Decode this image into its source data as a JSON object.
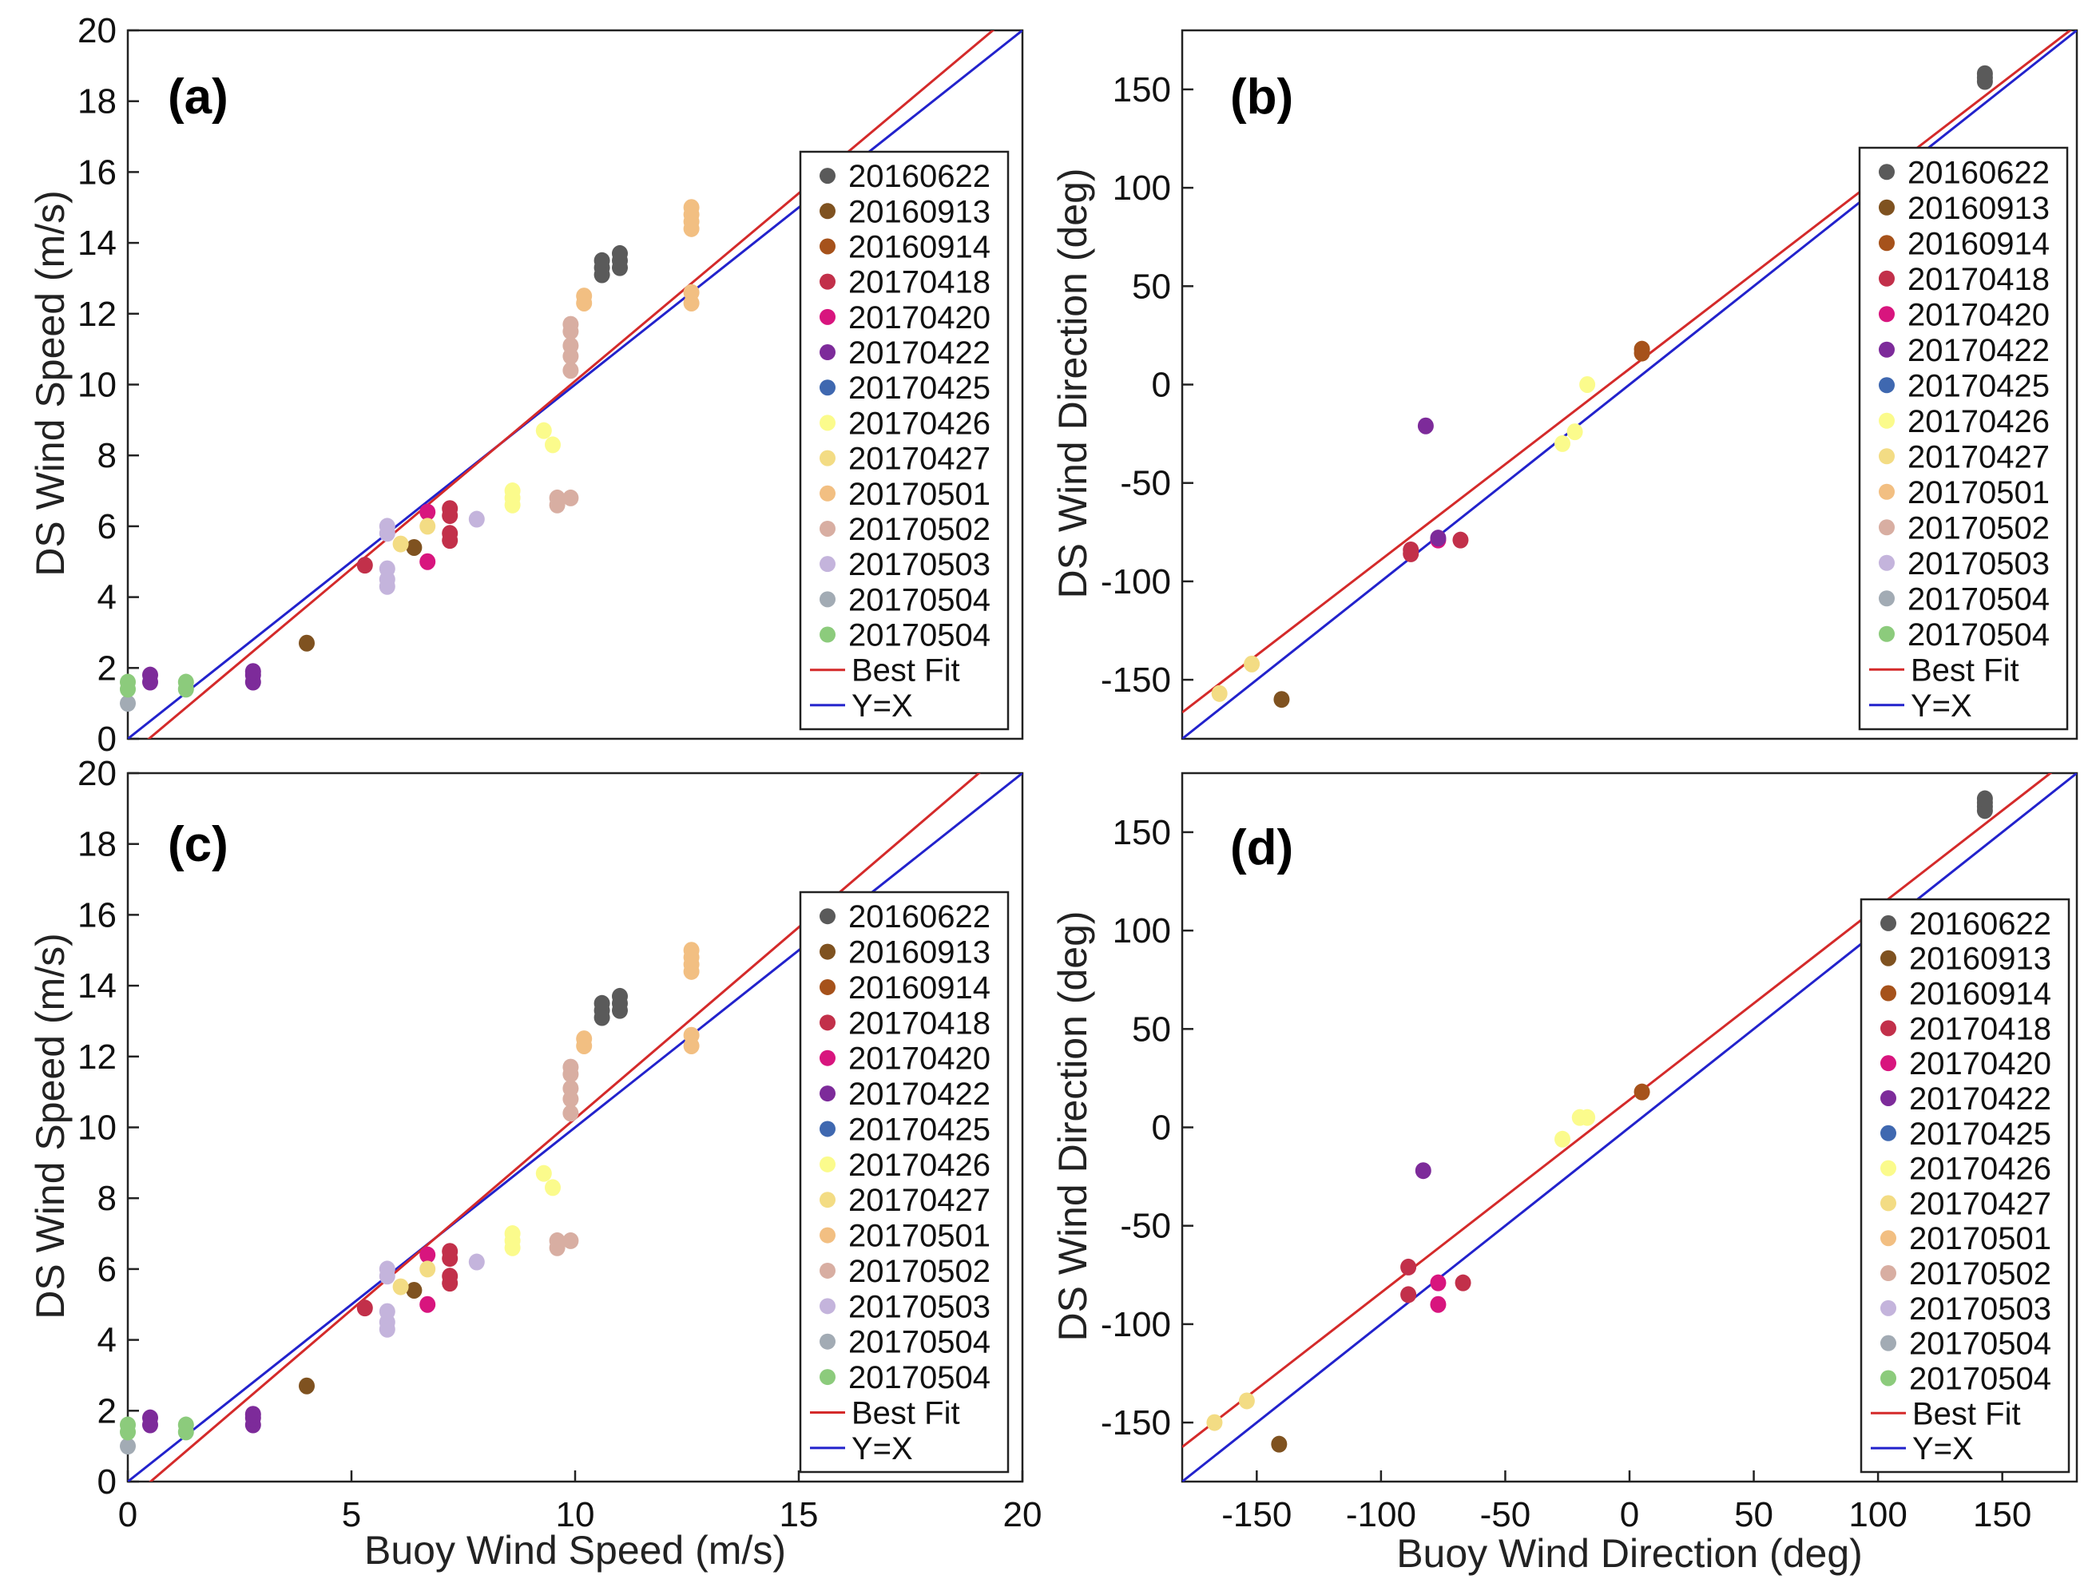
{
  "series_colors": {
    "20160622": "#5a5a5a",
    "20160913": "#7f5220",
    "20160914": "#a6521b",
    "20170418": "#c2304a",
    "20170420": "#d8157e",
    "20170422": "#7d2b9a",
    "20170425": "#3f68b0",
    "20170426": "#fbfb8c",
    "20170427": "#f3dc84",
    "20170501": "#f2bf82",
    "20170502": "#d8aea2",
    "20170503": "#c4b4dc",
    "20170504a": "#a2abb4",
    "20170504b": "#8ccb7c"
  },
  "legend_entries": [
    {
      "key": "20160622",
      "label": "20160622"
    },
    {
      "key": "20160913",
      "label": "20160913"
    },
    {
      "key": "20160914",
      "label": "20160914"
    },
    {
      "key": "20170418",
      "label": "20170418"
    },
    {
      "key": "20170420",
      "label": "20170420"
    },
    {
      "key": "20170422",
      "label": "20170422"
    },
    {
      "key": "20170425",
      "label": "20170425"
    },
    {
      "key": "20170426",
      "label": "20170426"
    },
    {
      "key": "20170427",
      "label": "20170427"
    },
    {
      "key": "20170501",
      "label": "20170501"
    },
    {
      "key": "20170502",
      "label": "20170502"
    },
    {
      "key": "20170503",
      "label": "20170503"
    },
    {
      "key": "20170504a",
      "label": "20170504"
    },
    {
      "key": "20170504b",
      "label": "20170504"
    }
  ],
  "line_labels": {
    "best_fit": "Best Fit",
    "yx": "Y=X"
  },
  "line_colors": {
    "best_fit": "#d42a2a",
    "yx": "#2222cc"
  },
  "chart_data": [
    {
      "id": "a",
      "type": "scatter",
      "panel_label": "(a)",
      "xlabel": "",
      "ylabel": "DS Wind Speed (m/s)",
      "xlim": [
        0,
        20
      ],
      "ylim": [
        0,
        20
      ],
      "xticks": [],
      "yticks": [
        0,
        2,
        4,
        6,
        8,
        10,
        12,
        14,
        16,
        18,
        20
      ],
      "best_fit": {
        "slope": 1.06,
        "intercept": -0.5
      },
      "series": [
        {
          "key": "20160622",
          "points": [
            [
              10.6,
              13.1
            ],
            [
              10.6,
              13.3
            ],
            [
              10.6,
              13.5
            ],
            [
              11,
              13.3
            ],
            [
              11,
              13.5
            ],
            [
              11,
              13.7
            ]
          ]
        },
        {
          "key": "20160913",
          "points": [
            [
              4,
              2.7
            ],
            [
              6.4,
              5.4
            ]
          ]
        },
        {
          "key": "20170418",
          "points": [
            [
              5.3,
              4.9
            ],
            [
              7.2,
              5.6
            ],
            [
              7.2,
              5.8
            ],
            [
              7.2,
              6.3
            ],
            [
              7.2,
              6.5
            ]
          ]
        },
        {
          "key": "20170420",
          "points": [
            [
              6.7,
              6.4
            ],
            [
              6.7,
              5
            ]
          ]
        },
        {
          "key": "20170422",
          "points": [
            [
              0.5,
              1.6
            ],
            [
              0.5,
              1.8
            ],
            [
              2.8,
              1.6
            ],
            [
              2.8,
              1.8
            ],
            [
              2.8,
              1.9
            ]
          ]
        },
        {
          "key": "20170426",
          "points": [
            [
              8.6,
              6.6
            ],
            [
              8.6,
              6.8
            ],
            [
              8.6,
              7
            ],
            [
              9.3,
              8.7
            ],
            [
              9.5,
              8.3
            ]
          ]
        },
        {
          "key": "20170427",
          "points": [
            [
              6.1,
              5.5
            ],
            [
              6.7,
              6
            ]
          ]
        },
        {
          "key": "20170501",
          "points": [
            [
              10.2,
              12.3
            ],
            [
              10.2,
              12.5
            ],
            [
              12.6,
              14.4
            ],
            [
              12.6,
              14.6
            ],
            [
              12.6,
              14.8
            ],
            [
              12.6,
              15
            ],
            [
              12.6,
              12.3
            ],
            [
              12.6,
              12.6
            ]
          ]
        },
        {
          "key": "20170502",
          "points": [
            [
              9.6,
              6.6
            ],
            [
              9.6,
              6.8
            ],
            [
              9.9,
              6.8
            ],
            [
              9.9,
              10.4
            ],
            [
              9.9,
              10.8
            ],
            [
              9.9,
              11.1
            ],
            [
              9.9,
              11.5
            ],
            [
              9.9,
              11.7
            ]
          ]
        },
        {
          "key": "20170503",
          "points": [
            [
              5.8,
              4.3
            ],
            [
              5.8,
              4.5
            ],
            [
              5.8,
              4.8
            ],
            [
              5.8,
              5.8
            ],
            [
              5.8,
              6
            ],
            [
              7.8,
              6.2
            ]
          ]
        },
        {
          "key": "20170504a",
          "points": [
            [
              0,
              1
            ]
          ]
        },
        {
          "key": "20170504b",
          "points": [
            [
              0,
              1.4
            ],
            [
              0,
              1.6
            ],
            [
              1.3,
              1.4
            ],
            [
              1.3,
              1.6
            ]
          ]
        }
      ]
    },
    {
      "id": "b",
      "type": "scatter",
      "panel_label": "(b)",
      "xlabel": "",
      "ylabel": "DS Wind Direction (deg)",
      "xlim": [
        -180,
        180
      ],
      "ylim": [
        -180,
        180
      ],
      "xticks": [],
      "yticks": [
        -150,
        -100,
        -50,
        0,
        50,
        100,
        150
      ],
      "best_fit": {
        "slope": 0.97,
        "intercept": 8
      },
      "series": [
        {
          "key": "20160622",
          "points": [
            [
              143,
              154
            ],
            [
              143,
              156
            ],
            [
              143,
              158
            ]
          ]
        },
        {
          "key": "20160913",
          "points": [
            [
              -140,
              -160
            ]
          ]
        },
        {
          "key": "20160914",
          "points": [
            [
              5,
              16
            ],
            [
              5,
              18
            ]
          ]
        },
        {
          "key": "20170418",
          "points": [
            [
              -88,
              -86
            ],
            [
              -88,
              -84
            ],
            [
              -68,
              -79
            ]
          ]
        },
        {
          "key": "20170420",
          "points": [
            [
              -77,
              -79
            ]
          ]
        },
        {
          "key": "20170422",
          "points": [
            [
              -82,
              -21
            ],
            [
              -77,
              -78
            ]
          ]
        },
        {
          "key": "20170426",
          "points": [
            [
              -17,
              0
            ],
            [
              -27,
              -30
            ],
            [
              -22,
              -24
            ]
          ]
        },
        {
          "key": "20170427",
          "points": [
            [
              -165,
              -157
            ],
            [
              -152,
              -142
            ]
          ]
        }
      ]
    },
    {
      "id": "c",
      "type": "scatter",
      "panel_label": "(c)",
      "xlabel": "Buoy Wind Speed (m/s)",
      "ylabel": "DS Wind Speed (m/s)",
      "xlim": [
        0,
        20
      ],
      "ylim": [
        0,
        20
      ],
      "xticks": [
        0,
        5,
        10,
        15,
        20
      ],
      "yticks": [
        0,
        2,
        4,
        6,
        8,
        10,
        12,
        14,
        16,
        18,
        20
      ],
      "best_fit": {
        "slope": 1.08,
        "intercept": -0.55
      },
      "series": [
        {
          "key": "20160622",
          "points": [
            [
              10.6,
              13.1
            ],
            [
              10.6,
              13.3
            ],
            [
              10.6,
              13.5
            ],
            [
              11,
              13.3
            ],
            [
              11,
              13.5
            ],
            [
              11,
              13.7
            ]
          ]
        },
        {
          "key": "20160913",
          "points": [
            [
              4,
              2.7
            ],
            [
              6.4,
              5.4
            ]
          ]
        },
        {
          "key": "20170418",
          "points": [
            [
              5.3,
              4.9
            ],
            [
              7.2,
              5.6
            ],
            [
              7.2,
              5.8
            ],
            [
              7.2,
              6.3
            ],
            [
              7.2,
              6.5
            ]
          ]
        },
        {
          "key": "20170420",
          "points": [
            [
              6.7,
              6.4
            ],
            [
              6.7,
              5
            ]
          ]
        },
        {
          "key": "20170422",
          "points": [
            [
              0.5,
              1.6
            ],
            [
              0.5,
              1.8
            ],
            [
              2.8,
              1.6
            ],
            [
              2.8,
              1.8
            ],
            [
              2.8,
              1.9
            ]
          ]
        },
        {
          "key": "20170426",
          "points": [
            [
              8.6,
              6.6
            ],
            [
              8.6,
              6.8
            ],
            [
              8.6,
              7
            ],
            [
              9.3,
              8.7
            ],
            [
              9.5,
              8.3
            ]
          ]
        },
        {
          "key": "20170427",
          "points": [
            [
              6.1,
              5.5
            ],
            [
              6.7,
              6
            ]
          ]
        },
        {
          "key": "20170501",
          "points": [
            [
              10.2,
              12.3
            ],
            [
              10.2,
              12.5
            ],
            [
              12.6,
              14.4
            ],
            [
              12.6,
              14.6
            ],
            [
              12.6,
              14.8
            ],
            [
              12.6,
              15
            ],
            [
              12.6,
              12.3
            ],
            [
              12.6,
              12.6
            ]
          ]
        },
        {
          "key": "20170502",
          "points": [
            [
              9.6,
              6.6
            ],
            [
              9.6,
              6.8
            ],
            [
              9.9,
              6.8
            ],
            [
              9.9,
              10.4
            ],
            [
              9.9,
              10.8
            ],
            [
              9.9,
              11.1
            ],
            [
              9.9,
              11.5
            ],
            [
              9.9,
              11.7
            ]
          ]
        },
        {
          "key": "20170503",
          "points": [
            [
              5.8,
              4.3
            ],
            [
              5.8,
              4.5
            ],
            [
              5.8,
              4.8
            ],
            [
              5.8,
              5.8
            ],
            [
              5.8,
              6
            ],
            [
              7.8,
              6.2
            ]
          ]
        },
        {
          "key": "20170504a",
          "points": [
            [
              0,
              1
            ]
          ]
        },
        {
          "key": "20170504b",
          "points": [
            [
              0,
              1.4
            ],
            [
              0,
              1.6
            ],
            [
              1.3,
              1.4
            ],
            [
              1.3,
              1.6
            ]
          ]
        }
      ]
    },
    {
      "id": "d",
      "type": "scatter",
      "panel_label": "(d)",
      "xlabel": "Buoy Wind Direction (deg)",
      "ylabel": "DS Wind Direction (deg)",
      "xlim": [
        -180,
        180
      ],
      "ylim": [
        -180,
        180
      ],
      "xticks": [
        -150,
        -100,
        -50,
        0,
        50,
        100,
        150
      ],
      "yticks": [
        -150,
        -100,
        -50,
        0,
        50,
        100,
        150
      ],
      "best_fit": {
        "slope": 0.98,
        "intercept": 14
      },
      "series": [
        {
          "key": "20160622",
          "points": [
            [
              143,
              161
            ],
            [
              143,
              163
            ],
            [
              143,
              165
            ],
            [
              143,
              167
            ]
          ]
        },
        {
          "key": "20160913",
          "points": [
            [
              -141,
              -161
            ]
          ]
        },
        {
          "key": "20160914",
          "points": [
            [
              5,
              18
            ]
          ]
        },
        {
          "key": "20170418",
          "points": [
            [
              -89,
              -71
            ],
            [
              -89,
              -85
            ],
            [
              -67,
              -79
            ]
          ]
        },
        {
          "key": "20170420",
          "points": [
            [
              -77,
              -79
            ],
            [
              -77,
              -90
            ]
          ]
        },
        {
          "key": "20170422",
          "points": [
            [
              -83,
              -22
            ]
          ]
        },
        {
          "key": "20170426",
          "points": [
            [
              -17,
              5
            ],
            [
              -20,
              5
            ],
            [
              -27,
              -6
            ]
          ]
        },
        {
          "key": "20170427",
          "points": [
            [
              -167,
              -150
            ],
            [
              -154,
              -139
            ]
          ]
        }
      ]
    }
  ]
}
